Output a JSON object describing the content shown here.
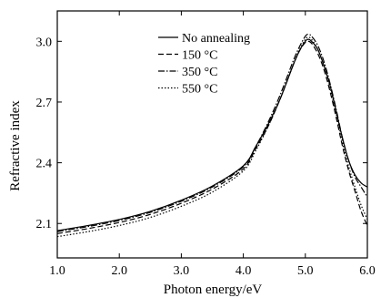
{
  "chart_data": {
    "type": "line",
    "xlabel": "Photon energy/eV",
    "ylabel": "Refractive index",
    "xlim": [
      1.0,
      6.0
    ],
    "ylim": [
      1.93,
      3.15
    ],
    "xticks": [
      1.0,
      2.0,
      3.0,
      4.0,
      5.0,
      6.0
    ],
    "xtick_labels": [
      "1.0",
      "2.0",
      "3.0",
      "4.0",
      "5.0",
      "6.0"
    ],
    "yticks": [
      2.1,
      2.4,
      2.7,
      3.0
    ],
    "ytick_labels": [
      "2.1",
      "2.4",
      "2.7",
      "3.0"
    ],
    "grid": false,
    "legend_position": "top-center",
    "series": [
      {
        "name": "No annealing",
        "dash": "solid",
        "x": [
          1.0,
          1.5,
          2.0,
          2.5,
          3.0,
          3.5,
          4.0,
          4.2,
          4.4,
          4.6,
          4.8,
          4.9,
          5.0,
          5.05,
          5.1,
          5.2,
          5.3,
          5.4,
          5.5,
          5.6,
          5.7,
          5.8,
          5.9,
          6.0
        ],
        "y": [
          2.065,
          2.09,
          2.12,
          2.16,
          2.215,
          2.285,
          2.385,
          2.48,
          2.59,
          2.72,
          2.88,
          2.95,
          3.0,
          3.01,
          3.0,
          2.96,
          2.88,
          2.78,
          2.65,
          2.52,
          2.41,
          2.34,
          2.3,
          2.28
        ]
      },
      {
        "name": "150 °C",
        "dash": "dash",
        "x": [
          1.0,
          1.5,
          2.0,
          2.5,
          3.0,
          3.5,
          4.0,
          4.2,
          4.4,
          4.6,
          4.8,
          4.9,
          5.0,
          5.05,
          5.1,
          5.2,
          5.3,
          5.4,
          5.5,
          5.6,
          5.7,
          5.8,
          5.9,
          6.0
        ],
        "y": [
          2.05,
          2.075,
          2.105,
          2.145,
          2.2,
          2.27,
          2.37,
          2.47,
          2.58,
          2.72,
          2.88,
          2.95,
          2.995,
          3.0,
          2.99,
          2.94,
          2.86,
          2.75,
          2.62,
          2.48,
          2.36,
          2.26,
          2.16,
          2.09
        ]
      },
      {
        "name": "350 °C",
        "dash": "dashdot",
        "x": [
          1.0,
          1.5,
          2.0,
          2.5,
          3.0,
          3.5,
          4.0,
          4.2,
          4.4,
          4.6,
          4.8,
          4.9,
          5.0,
          5.05,
          5.1,
          5.2,
          5.3,
          5.4,
          5.5,
          5.6,
          5.7,
          5.8,
          5.9,
          6.0
        ],
        "y": [
          2.06,
          2.085,
          2.115,
          2.155,
          2.21,
          2.28,
          2.38,
          2.48,
          2.6,
          2.74,
          2.9,
          2.97,
          3.025,
          3.035,
          3.025,
          2.98,
          2.9,
          2.79,
          2.66,
          2.52,
          2.41,
          2.33,
          2.28,
          2.23
        ]
      },
      {
        "name": "550 °C",
        "dash": "dot",
        "x": [
          1.0,
          1.5,
          2.0,
          2.5,
          3.0,
          3.5,
          4.0,
          4.2,
          4.4,
          4.6,
          4.8,
          4.9,
          5.0,
          5.05,
          5.1,
          5.2,
          5.3,
          5.4,
          5.5,
          5.6,
          5.7,
          5.8,
          5.9,
          6.0
        ],
        "y": [
          2.035,
          2.06,
          2.09,
          2.13,
          2.185,
          2.255,
          2.36,
          2.46,
          2.58,
          2.72,
          2.88,
          2.955,
          3.01,
          3.02,
          3.01,
          2.96,
          2.88,
          2.77,
          2.64,
          2.5,
          2.38,
          2.28,
          2.19,
          2.12
        ]
      }
    ]
  }
}
